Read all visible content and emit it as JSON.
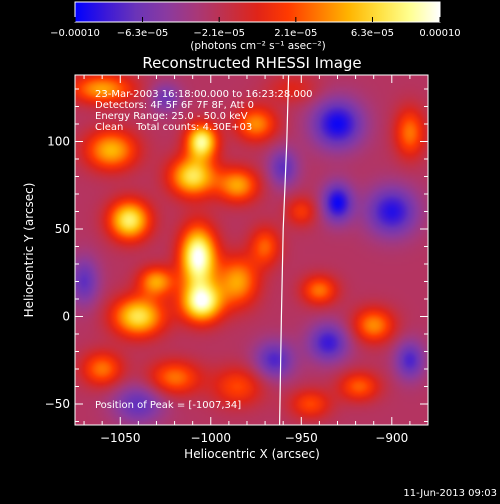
{
  "chart_data": {
    "type": "heatmap",
    "title": "Reconstructed RHESSI Image",
    "xlabel": "Heliocentric X (arcsec)",
    "ylabel": "Heliocentric Y (arcsec)",
    "xlim": [
      -1075,
      -880
    ],
    "ylim": [
      -62,
      138
    ],
    "x_ticks": [
      -1050,
      -1000,
      -950,
      -900
    ],
    "x_tick_labels": [
      "−1050",
      "−1000",
      "−950",
      "−900"
    ],
    "y_ticks": [
      -50,
      0,
      50,
      100
    ],
    "y_tick_labels": [
      "−50",
      "0",
      "50",
      "100"
    ],
    "colorbar": {
      "min": -0.0001,
      "max": 0.0001,
      "tick_values": [
        -0.0001,
        -6.3e-05,
        -2.1e-05,
        2.1e-05,
        6.3e-05,
        0.0001
      ],
      "tick_labels": [
        "−0.00010",
        "−6.3e−05",
        "−2.1e−05",
        "2.1e−05",
        "6.3e−05",
        "0.00010"
      ],
      "units_label": "(photons cm⁻² s⁻¹ asec⁻²)"
    },
    "colorscale": [
      "#0000ff",
      "#3a18d8",
      "#6a34b8",
      "#8a3aa0",
      "#a83878",
      "#c23048",
      "#e02418",
      "#ff3a00",
      "#ff7800",
      "#ffb400",
      "#ffe040",
      "#ffff90",
      "#ffffff"
    ],
    "grid": false,
    "info_lines": [
      "23-Mar-2003 16:18:00.000 to 16:23:28.000",
      "Detectors: 4F 5F 6F 7F 8F, Att 0",
      "Energy Range: 25.0 - 50.0 keV",
      "Clean    Total counts: 4.30E+03"
    ],
    "peak_label": "Position of Peak = [-1007,34]",
    "peak_position": [
      -1007,
      34
    ],
    "limb_x_at_y": [
      [
        -962,
        -62
      ],
      [
        -961,
        0
      ],
      [
        -960,
        50
      ],
      [
        -958,
        100
      ],
      [
        -957,
        138
      ]
    ],
    "blobs": [
      {
        "x": -1007,
        "y": 34,
        "sx": 7,
        "sy": 12,
        "amp": 1.0
      },
      {
        "x": -1005,
        "y": 8,
        "sx": 8,
        "sy": 8,
        "amp": 0.9
      },
      {
        "x": -1010,
        "y": 80,
        "sx": 9,
        "sy": 8,
        "amp": 0.75
      },
      {
        "x": -1005,
        "y": 100,
        "sx": 6,
        "sy": 7,
        "amp": 0.85
      },
      {
        "x": -1045,
        "y": 55,
        "sx": 8,
        "sy": 8,
        "amp": 0.8
      },
      {
        "x": -1040,
        "y": 0,
        "sx": 10,
        "sy": 8,
        "amp": 0.75
      },
      {
        "x": -1055,
        "y": 95,
        "sx": 10,
        "sy": 8,
        "amp": 0.6
      },
      {
        "x": -1030,
        "y": 20,
        "sx": 7,
        "sy": 6,
        "amp": 0.55
      },
      {
        "x": -985,
        "y": 20,
        "sx": 8,
        "sy": 10,
        "amp": 0.55
      },
      {
        "x": -985,
        "y": 75,
        "sx": 8,
        "sy": 7,
        "amp": 0.55
      },
      {
        "x": -975,
        "y": 110,
        "sx": 8,
        "sy": 7,
        "amp": 0.5
      },
      {
        "x": -1060,
        "y": 130,
        "sx": 12,
        "sy": 6,
        "amp": 0.55
      },
      {
        "x": -1020,
        "y": -35,
        "sx": 10,
        "sy": 7,
        "amp": 0.45
      },
      {
        "x": -1060,
        "y": -30,
        "sx": 8,
        "sy": 7,
        "amp": 0.45
      },
      {
        "x": -985,
        "y": -40,
        "sx": 10,
        "sy": 8,
        "amp": 0.35
      },
      {
        "x": -970,
        "y": 40,
        "sx": 6,
        "sy": 8,
        "amp": 0.4
      },
      {
        "x": -940,
        "y": 15,
        "sx": 7,
        "sy": 6,
        "amp": 0.45
      },
      {
        "x": -910,
        "y": -5,
        "sx": 8,
        "sy": 7,
        "amp": 0.5
      },
      {
        "x": -918,
        "y": -40,
        "sx": 8,
        "sy": 6,
        "amp": 0.4
      },
      {
        "x": -945,
        "y": -50,
        "sx": 8,
        "sy": 6,
        "amp": 0.35
      },
      {
        "x": -890,
        "y": 105,
        "sx": 6,
        "sy": 10,
        "amp": 0.45
      },
      {
        "x": -950,
        "y": 60,
        "sx": 6,
        "sy": 6,
        "amp": 0.3
      },
      {
        "x": -955,
        "y": 130,
        "sx": 10,
        "sy": 6,
        "amp": 0.2
      },
      {
        "x": -930,
        "y": 110,
        "sx": 10,
        "sy": 10,
        "amp": -0.55
      },
      {
        "x": -900,
        "y": 60,
        "sx": 10,
        "sy": 10,
        "amp": -0.5
      },
      {
        "x": -930,
        "y": 65,
        "sx": 6,
        "sy": 8,
        "amp": -0.55
      },
      {
        "x": -935,
        "y": -15,
        "sx": 8,
        "sy": 8,
        "amp": -0.45
      },
      {
        "x": -890,
        "y": -25,
        "sx": 6,
        "sy": 8,
        "amp": -0.4
      },
      {
        "x": -965,
        "y": -25,
        "sx": 8,
        "sy": 8,
        "amp": -0.4
      },
      {
        "x": -1040,
        "y": -50,
        "sx": 10,
        "sy": 8,
        "amp": -0.35
      },
      {
        "x": -1070,
        "y": 20,
        "sx": 6,
        "sy": 10,
        "amp": -0.35
      },
      {
        "x": -960,
        "y": 85,
        "sx": 6,
        "sy": 8,
        "amp": -0.35
      },
      {
        "x": -1025,
        "y": 125,
        "sx": 6,
        "sy": 6,
        "amp": -0.3
      }
    ]
  },
  "footer": {
    "timestamp": "11-Jun-2013 09:03"
  }
}
